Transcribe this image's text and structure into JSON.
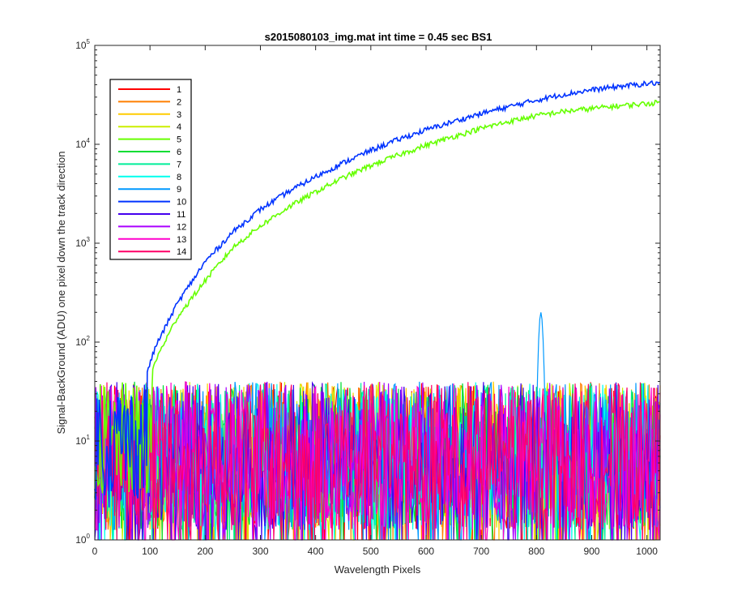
{
  "chart_data": {
    "type": "line",
    "title": "s2015080103_img.mat int time = 0.45 sec   BS1",
    "xlabel": "Wavelength Pixels",
    "ylabel": "Signal-BackGround (ADU) one pixel down the track direction",
    "xlim": [
      0,
      1024
    ],
    "ylim": [
      1,
      100000
    ],
    "yscale": "log",
    "grid": false,
    "legend_position": "top-left",
    "x_ticks": [
      0,
      100,
      200,
      300,
      400,
      500,
      600,
      700,
      800,
      900,
      1000
    ],
    "y_ticks": [
      1,
      10,
      100,
      1000,
      10000,
      100000
    ],
    "y_tick_labels": [
      {
        "base": "10",
        "exp": "0"
      },
      {
        "base": "10",
        "exp": "1"
      },
      {
        "base": "10",
        "exp": "2"
      },
      {
        "base": "10",
        "exp": "3"
      },
      {
        "base": "10",
        "exp": "4"
      },
      {
        "base": "10",
        "exp": "5"
      }
    ],
    "series": [
      {
        "name": "1",
        "color": "#ff0000",
        "kind": "noise"
      },
      {
        "name": "2",
        "color": "#ff7f00",
        "kind": "noise"
      },
      {
        "name": "3",
        "color": "#ffcc00",
        "kind": "noise"
      },
      {
        "name": "4",
        "color": "#ccee00",
        "kind": "noise"
      },
      {
        "name": "5",
        "color": "#66ff00",
        "kind": "signal",
        "points": [
          [
            105,
            55
          ],
          [
            120,
            85
          ],
          [
            150,
            180
          ],
          [
            200,
            420
          ],
          [
            250,
            900
          ],
          [
            300,
            1500
          ],
          [
            350,
            2300
          ],
          [
            400,
            3300
          ],
          [
            450,
            4600
          ],
          [
            500,
            6100
          ],
          [
            550,
            7800
          ],
          [
            600,
            9800
          ],
          [
            650,
            12000
          ],
          [
            700,
            14500
          ],
          [
            750,
            17000
          ],
          [
            800,
            19500
          ],
          [
            850,
            21500
          ],
          [
            900,
            23000
          ],
          [
            950,
            24500
          ],
          [
            1000,
            25800
          ],
          [
            1024,
            26500
          ]
        ]
      },
      {
        "name": "6",
        "color": "#00dd33",
        "kind": "noise"
      },
      {
        "name": "7",
        "color": "#00ee99",
        "kind": "noise"
      },
      {
        "name": "8",
        "color": "#00ffee",
        "kind": "noise"
      },
      {
        "name": "9",
        "color": "#0099ff",
        "kind": "noise",
        "peak": {
          "x": 808,
          "y": 200
        }
      },
      {
        "name": "10",
        "color": "#0033ff",
        "kind": "signal",
        "points": [
          [
            95,
            50
          ],
          [
            110,
            90
          ],
          [
            150,
            250
          ],
          [
            200,
            650
          ],
          [
            250,
            1300
          ],
          [
            300,
            2200
          ],
          [
            350,
            3300
          ],
          [
            400,
            4700
          ],
          [
            450,
            6500
          ],
          [
            500,
            8700
          ],
          [
            550,
            11200
          ],
          [
            600,
            14000
          ],
          [
            650,
            17000
          ],
          [
            700,
            20500
          ],
          [
            750,
            24000
          ],
          [
            800,
            28000
          ],
          [
            850,
            32000
          ],
          [
            900,
            35500
          ],
          [
            950,
            38500
          ],
          [
            1000,
            41000
          ],
          [
            1024,
            42000
          ]
        ]
      },
      {
        "name": "11",
        "color": "#4400ee",
        "kind": "noise"
      },
      {
        "name": "12",
        "color": "#aa00ff",
        "kind": "noise"
      },
      {
        "name": "13",
        "color": "#ff00cc",
        "kind": "noise"
      },
      {
        "name": "14",
        "color": "#ff0066",
        "kind": "noise"
      }
    ]
  }
}
